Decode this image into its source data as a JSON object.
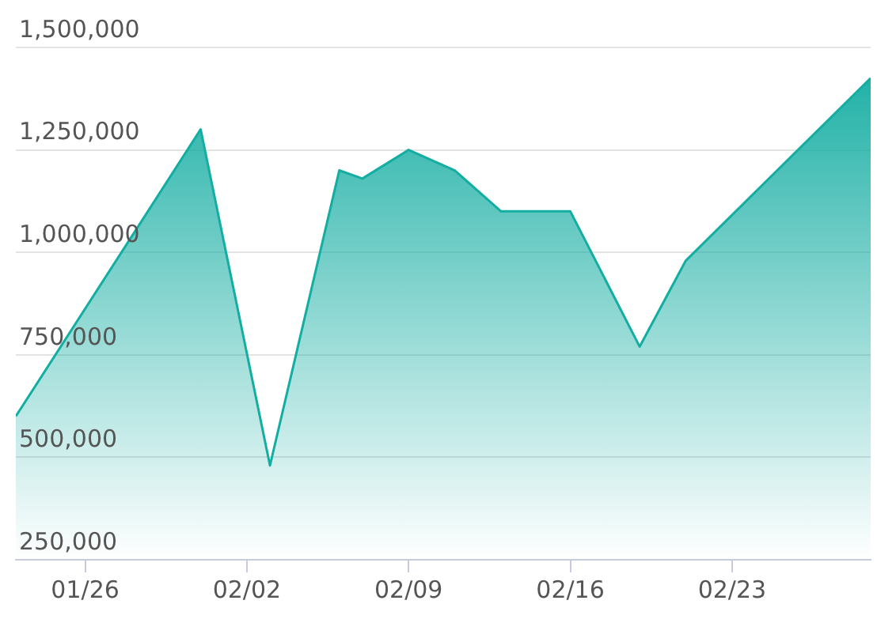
{
  "chart_data": {
    "type": "area",
    "x": [
      "--01-23",
      "--01-31",
      "--02-03",
      "--02-06",
      "--02-07",
      "--02-09",
      "--02-11",
      "--02-13",
      "--02-16",
      "--02-19",
      "--02-21",
      "--03-01"
    ],
    "series": [
      {
        "color": "#14ada2",
        "values": [
          600000,
          1300000,
          480000,
          1200000,
          1180000,
          1250000,
          1200000,
          1100000,
          1100000,
          770000,
          980000,
          1425000
        ]
      }
    ],
    "xlim": [
      "--01-23",
      "--03-01"
    ],
    "xticks": [
      {
        "value": "--01-26",
        "label": "01/26"
      },
      {
        "value": "--02-02",
        "label": "02/02"
      },
      {
        "value": "--02-09",
        "label": "02/09"
      },
      {
        "value": "--02-16",
        "label": "02/16"
      },
      {
        "value": "--02-23",
        "label": "02/23"
      }
    ],
    "ylim": [
      250000,
      1500000
    ],
    "yticks": [
      {
        "value": 250000,
        "label": "250,000"
      },
      {
        "value": 500000,
        "label": "500,000"
      },
      {
        "value": 750000,
        "label": "750,000"
      },
      {
        "value": 1000000,
        "label": "1,000,000"
      },
      {
        "value": 1250000,
        "label": "1,250,000"
      },
      {
        "value": 1500000,
        "label": "1,500,000"
      }
    ],
    "grid": "y",
    "legend": false,
    "marker": "none"
  }
}
